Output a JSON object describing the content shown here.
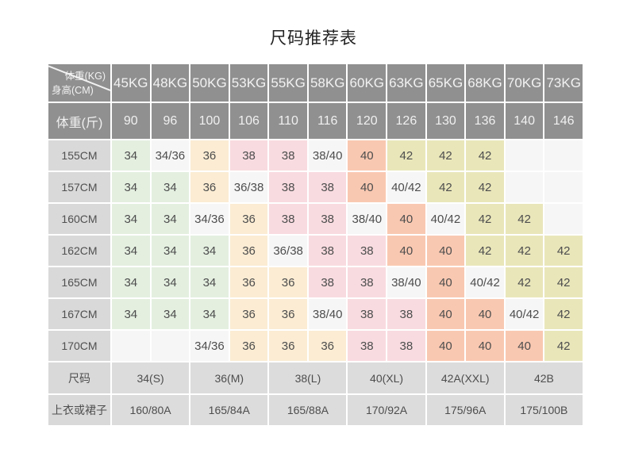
{
  "title": "尺码推荐表",
  "header": {
    "corner_top": "体重(KG)",
    "corner_bottom": "身高(CM)",
    "weight_kg": [
      "45KG",
      "48KG",
      "50KG",
      "53KG",
      "55KG",
      "58KG",
      "60KG",
      "63KG",
      "65KG",
      "68KG",
      "70KG",
      "73KG"
    ],
    "jin_label": "体重(斤)",
    "weight_jin": [
      "90",
      "96",
      "100",
      "106",
      "110",
      "116",
      "120",
      "126",
      "130",
      "136",
      "140",
      "146"
    ]
  },
  "body_rows": [
    {
      "label": "155CM",
      "cells": [
        "34",
        "34/36",
        "36",
        "38",
        "38",
        "38/40",
        "40",
        "42",
        "42",
        "42",
        "",
        ""
      ]
    },
    {
      "label": "157CM",
      "cells": [
        "34",
        "34",
        "36",
        "36/38",
        "38",
        "38",
        "40",
        "40/42",
        "42",
        "42",
        "",
        ""
      ]
    },
    {
      "label": "160CM",
      "cells": [
        "34",
        "34",
        "34/36",
        "36",
        "38",
        "38",
        "38/40",
        "40",
        "40/42",
        "42",
        "42",
        ""
      ]
    },
    {
      "label": "162CM",
      "cells": [
        "34",
        "34",
        "34",
        "36",
        "36/38",
        "38",
        "38",
        "40",
        "40",
        "42",
        "42",
        "42"
      ]
    },
    {
      "label": "165CM",
      "cells": [
        "34",
        "34",
        "34",
        "36",
        "36",
        "38",
        "38",
        "38/40",
        "40",
        "40/42",
        "42",
        "42"
      ]
    },
    {
      "label": "167CM",
      "cells": [
        "34",
        "34",
        "34",
        "36",
        "36",
        "38/40",
        "38",
        "38",
        "40",
        "40",
        "40/42",
        "42"
      ]
    },
    {
      "label": "170CM",
      "cells": [
        "",
        "",
        "34/36",
        "36",
        "36",
        "36",
        "38",
        "38",
        "40",
        "40",
        "40",
        "42"
      ]
    }
  ],
  "footer": {
    "size_label": "尺码",
    "sizes": [
      "34(S)",
      "36(M)",
      "38(L)",
      "40(XL)",
      "42A(XXL)",
      "42B"
    ],
    "garment_label": "上衣或裙子",
    "garments": [
      "160/80A",
      "165/84A",
      "165/88A",
      "170/92A",
      "175/96A",
      "175/100B"
    ]
  },
  "colors": {
    "header_bg": "#909090",
    "label_bg": "#d9d9d9",
    "footer_bg": "#dcdcdc",
    "neutral": "#f6f6f6",
    "size_34": "#e4efe0",
    "size_36": "#fbecd3",
    "size_38": "#f8dbe0",
    "size_40": "#f9c8b1",
    "size_42": "#e9e6ba"
  }
}
